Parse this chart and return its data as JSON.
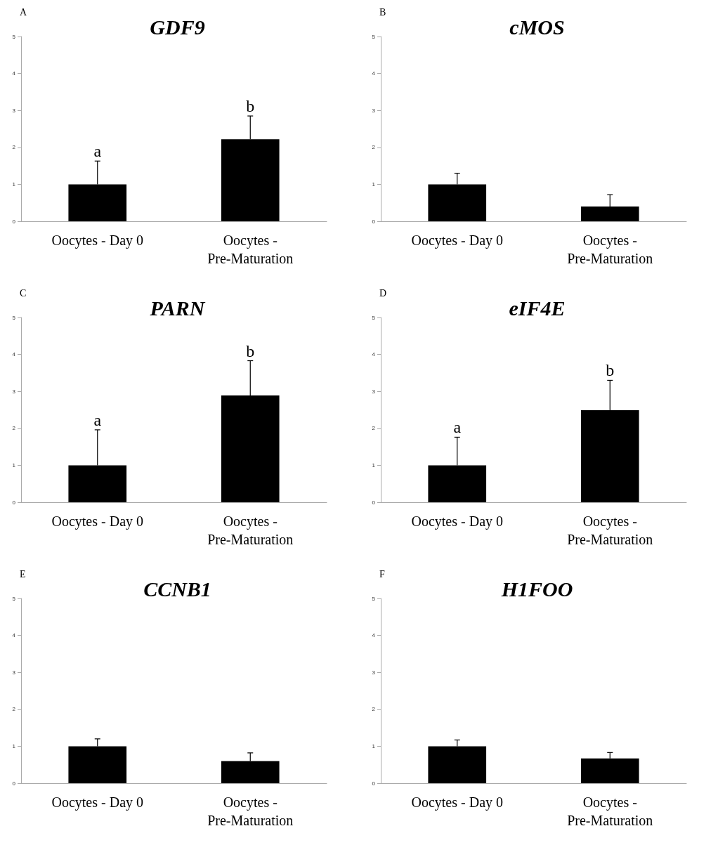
{
  "chart_data": [
    {
      "type": "bar",
      "title": "GDF9",
      "annotations": [
        "A",
        {
          "text": "a",
          "x": "Oocytes - Day 0",
          "y": 1.63
        },
        {
          "text": "b",
          "x": "Oocytes -\nPre-Maturation",
          "y": 2.85
        }
      ],
      "categories": [
        "Oocytes - Day 0",
        "Oocytes -\nPre-Maturation"
      ],
      "values": [
        1.0,
        2.22
      ],
      "errors": [
        [
          1.0,
          1.63
        ],
        [
          2.22,
          2.85
        ]
      ],
      "color": "#000000",
      "ylim": [
        0,
        5
      ],
      "yticks": [
        0,
        1,
        2,
        3,
        4,
        5
      ],
      "grid": false
    },
    {
      "type": "bar",
      "title": "cMOS",
      "annotations": [
        "B"
      ],
      "categories": [
        "Oocytes - Day 0",
        "Oocytes -\nPre-Maturation"
      ],
      "values": [
        1.0,
        0.4
      ],
      "errors": [
        [
          1.0,
          1.3
        ],
        [
          0.4,
          0.72
        ]
      ],
      "color": "#000000",
      "ylim": [
        0,
        5
      ],
      "yticks": [
        0,
        1,
        2,
        3,
        4,
        5
      ],
      "grid": false
    },
    {
      "type": "bar",
      "title": "PARN",
      "annotations": [
        "C",
        {
          "text": "a",
          "x": "Oocytes - Day 0",
          "y": 1.96
        },
        {
          "text": "b",
          "x": "Oocytes -\nPre-Maturation",
          "y": 3.83
        }
      ],
      "categories": [
        "Oocytes - Day 0",
        "Oocytes -\nPre-Maturation"
      ],
      "values": [
        1.0,
        2.89
      ],
      "errors": [
        [
          1.0,
          1.96
        ],
        [
          2.89,
          3.83
        ]
      ],
      "color": "#000000",
      "ylim": [
        0,
        5
      ],
      "yticks": [
        0,
        1,
        2,
        3,
        4,
        5
      ],
      "grid": false
    },
    {
      "type": "bar",
      "title": "eIF4E",
      "annotations": [
        "D",
        {
          "text": "a",
          "x": "Oocytes - Day 0",
          "y": 1.76
        },
        {
          "text": "b",
          "x": "Oocytes -\nPre-Maturation",
          "y": 3.3
        }
      ],
      "categories": [
        "Oocytes - Day 0",
        "Oocytes -\nPre-Maturation"
      ],
      "values": [
        1.0,
        2.49
      ],
      "errors": [
        [
          1.0,
          1.76
        ],
        [
          2.49,
          3.3
        ]
      ],
      "color": "#000000",
      "ylim": [
        0,
        5
      ],
      "yticks": [
        0,
        1,
        2,
        3,
        4,
        5
      ],
      "grid": false
    },
    {
      "type": "bar",
      "title": "CCNB1",
      "annotations": [
        "E"
      ],
      "categories": [
        "Oocytes - Day 0",
        "Oocytes -\nPre-Maturation"
      ],
      "values": [
        1.0,
        0.6
      ],
      "errors": [
        [
          1.0,
          1.2
        ],
        [
          0.6,
          0.82
        ]
      ],
      "color": "#000000",
      "ylim": [
        0,
        5
      ],
      "yticks": [
        0,
        1,
        2,
        3,
        4,
        5
      ],
      "grid": false
    },
    {
      "type": "bar",
      "title": "H1FOO",
      "annotations": [
        "F"
      ],
      "categories": [
        "Oocytes - Day 0",
        "Oocytes -\nPre-Maturation"
      ],
      "values": [
        1.0,
        0.67
      ],
      "errors": [
        [
          1.0,
          1.17
        ],
        [
          0.67,
          0.83
        ]
      ],
      "color": "#000000",
      "ylim": [
        0,
        5
      ],
      "yticks": [
        0,
        1,
        2,
        3,
        4,
        5
      ],
      "grid": false
    }
  ]
}
